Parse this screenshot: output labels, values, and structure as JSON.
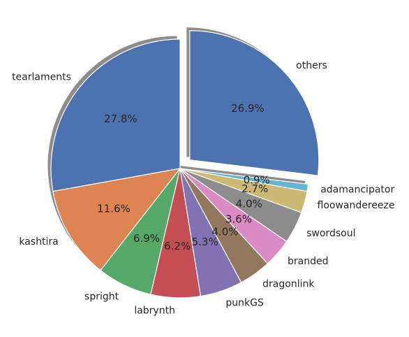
{
  "chart_data": {
    "type": "pie",
    "title": "",
    "start_angle_deg": 90,
    "direction": "counterclockwise",
    "shadow": true,
    "slices": [
      {
        "label": "tearlaments",
        "value": 27.8,
        "pct_label": "27.8%",
        "color": "#4c72b0",
        "explode": 0
      },
      {
        "label": "kashtira",
        "value": 11.6,
        "pct_label": "11.6%",
        "color": "#dd8452",
        "explode": 0
      },
      {
        "label": "spright",
        "value": 6.9,
        "pct_label": "6.9%",
        "color": "#55a868",
        "explode": 0
      },
      {
        "label": "labrynth",
        "value": 6.2,
        "pct_label": "6.2%",
        "color": "#c44e52",
        "explode": 0
      },
      {
        "label": "punkGS",
        "value": 5.3,
        "pct_label": "5.3%",
        "color": "#8172b3",
        "explode": 0
      },
      {
        "label": "dragonlink",
        "value": 4.0,
        "pct_label": "4.0%",
        "color": "#937860",
        "explode": 0
      },
      {
        "label": "branded",
        "value": 3.6,
        "pct_label": "3.6%",
        "color": "#da8bc3",
        "explode": 0
      },
      {
        "label": "swordsoul",
        "value": 4.0,
        "pct_label": "4.0%",
        "color": "#8c8c8c",
        "explode": 0
      },
      {
        "label": "floowandereeze",
        "value": 2.7,
        "pct_label": "2.7%",
        "color": "#ccb974",
        "explode": 0
      },
      {
        "label": "adamancipator",
        "value": 0.9,
        "pct_label": "0.9%",
        "color": "#64b5cd",
        "explode": 0
      },
      {
        "label": "others",
        "value": 26.9,
        "pct_label": "26.9%",
        "color": "#4c72b0",
        "explode": 0.1
      }
    ]
  }
}
